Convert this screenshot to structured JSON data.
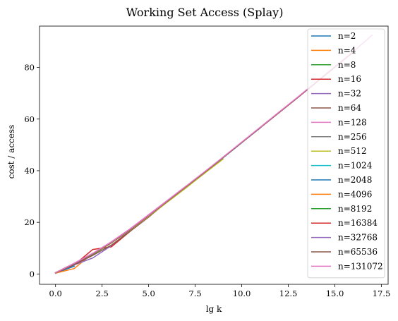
{
  "chart_data": {
    "type": "line",
    "title": "Working Set Access (Splay)",
    "xlabel": "lg k",
    "ylabel": "cost / access",
    "xlim": [
      -0.86,
      17.86
    ],
    "ylim": [
      -4,
      96
    ],
    "xticks": [
      0.0,
      2.5,
      5.0,
      7.5,
      10.0,
      12.5,
      15.0,
      17.5
    ],
    "xtick_labels": [
      "0.0",
      "2.5",
      "5.0",
      "7.5",
      "10.0",
      "12.5",
      "15.0",
      "17.5"
    ],
    "yticks": [
      0,
      20,
      40,
      60,
      80
    ],
    "ytick_labels": [
      "0",
      "20",
      "40",
      "60",
      "80"
    ],
    "grid": false,
    "legend_position": "top-right",
    "series": [
      {
        "name": "n=2",
        "color": "#1f77b4",
        "x": [
          0,
          1
        ],
        "y": [
          0.3,
          3.0
        ]
      },
      {
        "name": "n=4",
        "color": "#ff7f0e",
        "x": [
          0,
          1,
          2
        ],
        "y": [
          0.3,
          2.1,
          8.0
        ]
      },
      {
        "name": "n=8",
        "color": "#2ca02c",
        "x": [
          0,
          1,
          2,
          3
        ],
        "y": [
          0.5,
          3.5,
          7.5,
          12.0
        ]
      },
      {
        "name": "n=16",
        "color": "#d62728",
        "x": [
          0,
          1,
          2,
          3,
          4
        ],
        "y": [
          0.5,
          3.5,
          9.5,
          10.5,
          16.5
        ]
      },
      {
        "name": "n=32",
        "color": "#9467bd",
        "x": [
          0,
          1,
          2,
          3,
          4,
          5
        ],
        "y": [
          0.4,
          3.5,
          6.2,
          11.0,
          16.8,
          22.5
        ]
      },
      {
        "name": "n=64",
        "color": "#8c564b",
        "x": [
          0,
          1,
          2,
          3,
          4,
          5,
          6
        ],
        "y": [
          0.4,
          3.6,
          7.2,
          11.2,
          16.5,
          22.0,
          28.0
        ]
      },
      {
        "name": "n=128",
        "color": "#e377c2",
        "x": [
          0,
          1,
          2,
          3,
          4,
          5,
          6,
          7
        ],
        "y": [
          0.5,
          4.2,
          8.0,
          12.5,
          17.5,
          23.0,
          28.5,
          34.0
        ]
      },
      {
        "name": "n=256",
        "color": "#7f7f7f",
        "x": [
          0,
          1,
          2,
          3,
          4,
          5,
          6,
          7,
          8
        ],
        "y": [
          0.5,
          4.0,
          7.8,
          12.0,
          17.0,
          22.5,
          28.0,
          33.5,
          39.0
        ]
      },
      {
        "name": "n=512",
        "color": "#bcbd22",
        "x": [
          0,
          1,
          2,
          3,
          4,
          5,
          6,
          7,
          8,
          9
        ],
        "y": [
          0.5,
          4.0,
          7.8,
          12.0,
          17.0,
          22.3,
          27.8,
          33.3,
          39.0,
          44.5
        ]
      },
      {
        "name": "n=1024",
        "color": "#17becf",
        "x": [
          0,
          1,
          2,
          3,
          4,
          5,
          6,
          7,
          8,
          9,
          10
        ],
        "y": [
          0.5,
          4.0,
          7.9,
          12.2,
          17.2,
          22.6,
          28.2,
          33.8,
          39.4,
          45.0,
          50.8
        ]
      },
      {
        "name": "n=2048",
        "color": "#1f77b4",
        "x": [
          0,
          1,
          2,
          3,
          4,
          5,
          6,
          7,
          8,
          9,
          10,
          11
        ],
        "y": [
          0.5,
          4.0,
          7.9,
          12.2,
          17.2,
          22.6,
          28.2,
          33.8,
          39.4,
          45.1,
          50.9,
          56.6
        ]
      },
      {
        "name": "n=4096",
        "color": "#ff7f0e",
        "x": [
          0,
          1,
          2,
          3,
          4,
          5,
          6,
          7,
          8,
          9,
          10,
          11,
          12
        ],
        "y": [
          0.5,
          4.0,
          7.9,
          12.2,
          17.2,
          22.6,
          28.2,
          33.8,
          39.4,
          45.1,
          50.9,
          56.7,
          62.5
        ]
      },
      {
        "name": "n=8192",
        "color": "#2ca02c",
        "x": [
          0,
          1,
          2,
          3,
          4,
          5,
          6,
          7,
          8,
          9,
          10,
          11,
          12,
          13
        ],
        "y": [
          0.5,
          4.0,
          7.9,
          12.2,
          17.2,
          22.6,
          28.2,
          33.8,
          39.4,
          45.1,
          50.9,
          56.7,
          62.5,
          68.3
        ]
      },
      {
        "name": "n=16384",
        "color": "#d62728",
        "x": [
          0,
          1,
          2,
          3,
          4,
          5,
          6,
          7,
          8,
          9,
          10,
          11,
          12,
          13,
          14
        ],
        "y": [
          0.5,
          4.0,
          7.9,
          12.2,
          17.2,
          22.6,
          28.2,
          33.8,
          39.4,
          45.1,
          50.9,
          56.7,
          62.5,
          68.3,
          74.2
        ]
      },
      {
        "name": "n=32768",
        "color": "#9467bd",
        "x": [
          0,
          1,
          2,
          3,
          4,
          5,
          6,
          7,
          8,
          9,
          10,
          11,
          12,
          13,
          14,
          15
        ],
        "y": [
          0.5,
          4.0,
          7.9,
          12.2,
          17.2,
          22.6,
          28.2,
          33.8,
          39.4,
          45.1,
          50.9,
          56.7,
          62.5,
          68.3,
          74.2,
          80.1
        ]
      },
      {
        "name": "n=65536",
        "color": "#8c564b",
        "x": [
          0,
          1,
          2,
          3,
          4,
          5,
          6,
          7,
          8,
          9,
          10,
          11,
          12,
          13,
          14,
          15,
          16
        ],
        "y": [
          0.5,
          4.0,
          7.9,
          12.2,
          17.2,
          22.6,
          28.2,
          33.8,
          39.4,
          45.1,
          50.9,
          56.7,
          62.5,
          68.3,
          74.2,
          80.1,
          86.0
        ]
      },
      {
        "name": "n=131072",
        "color": "#e377c2",
        "x": [
          0,
          1,
          2,
          3,
          4,
          5,
          6,
          7,
          8,
          9,
          10,
          11,
          12,
          13,
          14,
          15,
          16,
          17
        ],
        "y": [
          0.5,
          4.1,
          8.0,
          12.4,
          17.4,
          22.8,
          28.4,
          34.0,
          39.6,
          45.3,
          51.1,
          56.9,
          62.7,
          68.5,
          74.4,
          80.3,
          86.2,
          92.5
        ]
      }
    ]
  }
}
